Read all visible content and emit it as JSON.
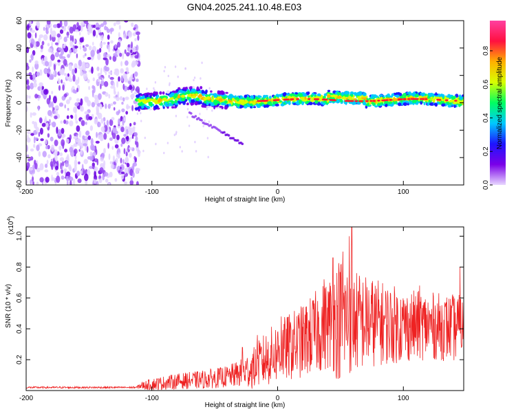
{
  "chart_data": [
    {
      "type": "heatmap",
      "title": "GN04.2025.241.10.48.E03",
      "xlabel": "Height of straight line (km)",
      "ylabel": "Frequency (Hz)",
      "xlim": [
        -200,
        148
      ],
      "ylim": [
        -60,
        60
      ],
      "xticks": [
        "-200",
        "-100",
        "0",
        "100"
      ],
      "xtick_values": [
        -200,
        -100,
        0,
        100
      ],
      "yticks": [
        "60",
        "40",
        "20",
        "0",
        "-20",
        "-40",
        "-60"
      ],
      "ytick_values": [
        60,
        40,
        20,
        0,
        -20,
        -40,
        -60
      ],
      "noise_region_x": [
        -200,
        -112
      ],
      "signal_band": {
        "x": [
          -112,
          148
        ],
        "center_hz": 2,
        "half_width_hz": 4
      },
      "side_branch": {
        "x": [
          -70,
          -28
        ],
        "hz_start": -8,
        "hz_end": -30
      },
      "colorbar": {
        "label": "Normalized spectral amplitude",
        "ticks": [
          "0.0",
          "0.2",
          "0.4",
          "0.6",
          "0.8"
        ],
        "tick_values": [
          0.0,
          0.2,
          0.4,
          0.6,
          0.8
        ],
        "range": [
          0,
          0.98
        ],
        "colors": [
          "#e8d8ff",
          "#7a00e8",
          "#1e14ff",
          "#00c8ff",
          "#00ff60",
          "#d8ff00",
          "#ffb000",
          "#ff1040",
          "#ff40a0"
        ]
      }
    },
    {
      "type": "line",
      "xlabel": "Height of straight line (km)",
      "ylabel": "SNR (10 * v/v)",
      "scale_label": "(x10",
      "scale_exp": "4",
      "scale_close": ")",
      "xlim": [
        -200,
        148
      ],
      "ylim": [
        0,
        1.06
      ],
      "xticks": [
        "-200",
        "-100",
        "0",
        "100"
      ],
      "xtick_values": [
        -200,
        -100,
        0,
        100
      ],
      "yticks": [
        "1.0",
        "0.8",
        "0.6",
        "0.4",
        "0.2"
      ],
      "ytick_values": [
        1.0,
        0.8,
        0.6,
        0.4,
        0.2
      ],
      "series_color": "#ee2222",
      "envelope": {
        "x": [
          -200,
          -112,
          -110,
          -100,
          -80,
          -60,
          -40,
          -30,
          -20,
          -10,
          0,
          20,
          40,
          50,
          60,
          80,
          100,
          120,
          148
        ],
        "mean": [
          0.02,
          0.02,
          0.03,
          0.04,
          0.06,
          0.07,
          0.09,
          0.11,
          0.14,
          0.2,
          0.25,
          0.32,
          0.43,
          0.47,
          0.45,
          0.44,
          0.42,
          0.42,
          0.4
        ],
        "amp": [
          0.006,
          0.006,
          0.02,
          0.04,
          0.05,
          0.06,
          0.07,
          0.09,
          0.13,
          0.18,
          0.2,
          0.24,
          0.3,
          0.42,
          0.34,
          0.28,
          0.24,
          0.22,
          0.22
        ]
      },
      "peaks": [
        [
          57,
          1.0
        ],
        [
          52,
          0.9
        ],
        [
          59,
          1.06
        ],
        [
          37,
          0.72
        ],
        [
          44,
          0.86
        ],
        [
          145,
          0.8
        ],
        [
          113,
          0.68
        ],
        [
          -16,
          0.36
        ],
        [
          -28,
          0.28
        ],
        [
          3,
          0.48
        ]
      ]
    }
  ]
}
